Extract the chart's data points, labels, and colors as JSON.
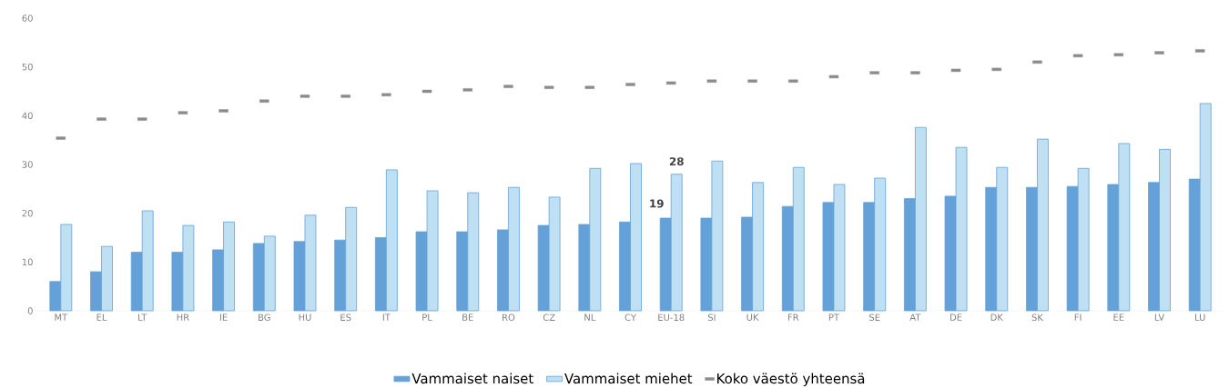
{
  "chart_data": {
    "type": "bar",
    "categories": [
      "MT",
      "EL",
      "LT",
      "HR",
      "IE",
      "BG",
      "HU",
      "ES",
      "IT",
      "PL",
      "BE",
      "RO",
      "CZ",
      "NL",
      "CY",
      "EU-18",
      "SI",
      "UK",
      "FR",
      "PT",
      "SE",
      "AT",
      "DE",
      "DK",
      "SK",
      "FI",
      "EE",
      "LV",
      "LU"
    ],
    "series": [
      {
        "name": "Vammaiset naiset",
        "color": "#64a1d8",
        "values": [
          6,
          8,
          12,
          12,
          12.5,
          13.8,
          14.2,
          14.5,
          15,
          16.2,
          16.2,
          16.6,
          17.5,
          17.7,
          18.2,
          19,
          19,
          19.2,
          21.4,
          22.2,
          22.2,
          23,
          23.5,
          25.3,
          25.3,
          25.5,
          25.9,
          26.3,
          27
        ],
        "value_labels": [
          null,
          null,
          null,
          null,
          null,
          null,
          null,
          null,
          null,
          null,
          null,
          null,
          null,
          null,
          null,
          "19",
          null,
          null,
          null,
          null,
          null,
          null,
          null,
          null,
          null,
          null,
          null,
          null,
          null
        ]
      },
      {
        "name": "Vammaiset miehet",
        "color": "#bfe0f2",
        "values": [
          17.7,
          13.2,
          20.5,
          17.5,
          18.2,
          15.3,
          19.6,
          21.2,
          28.9,
          24.6,
          24.2,
          25.3,
          23.3,
          29.2,
          30.2,
          28,
          30.7,
          26.3,
          29.4,
          25.9,
          27.2,
          37.6,
          33.5,
          29.4,
          35.2,
          29.2,
          34.3,
          33.1,
          42.5
        ],
        "value_labels": [
          null,
          null,
          null,
          null,
          null,
          null,
          null,
          null,
          null,
          null,
          null,
          null,
          null,
          null,
          null,
          "28",
          null,
          null,
          null,
          null,
          null,
          null,
          null,
          null,
          null,
          null,
          null,
          null,
          null
        ]
      },
      {
        "name": "Koko väestö yhteensä",
        "type": "scatter",
        "marker": "square",
        "color": "#8c8c8c",
        "values": [
          35.4,
          39.3,
          39.3,
          40.6,
          41,
          43,
          44,
          44,
          44.3,
          45,
          45.3,
          46,
          45.8,
          45.8,
          46.4,
          46.7,
          47.1,
          47.1,
          47.1,
          48,
          48.8,
          48.8,
          49.3,
          49.5,
          51,
          52.3,
          52.5,
          52.9,
          53.3
        ]
      }
    ],
    "ylim": [
      0,
      60
    ],
    "yticks": [
      0,
      10,
      20,
      30,
      40,
      50,
      60
    ],
    "legend": "bottom"
  }
}
